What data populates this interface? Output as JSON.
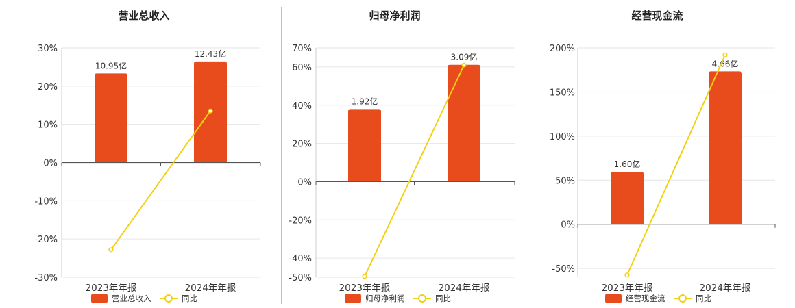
{
  "chart_data": [
    {
      "type": "bar",
      "title": "营业总收入",
      "categories": [
        "2023年年报",
        "2024年年报"
      ],
      "series": [
        {
          "name": "营业总收入",
          "kind": "bar",
          "axis": "left",
          "values": [
            10.95,
            12.43
          ],
          "labels": [
            "10.95亿",
            "12.43亿"
          ],
          "color": "#e84c1c"
        },
        {
          "name": "同比",
          "kind": "line",
          "axis": "left",
          "values": [
            -22.8,
            13.5
          ],
          "color": "#f2d013"
        }
      ],
      "ylim": [
        -30,
        30
      ],
      "yticks": [
        "30%",
        "20%",
        "10%",
        "0%",
        "-10%",
        "-20%",
        "-30%"
      ],
      "ytick_values": [
        30,
        20,
        10,
        0,
        -10,
        -20,
        -30
      ],
      "bar_scale": {
        "zero_percent": 0,
        "max_percent": 23.3,
        "max_value": 10.95
      },
      "grid": true,
      "legend": "bottom"
    },
    {
      "type": "bar",
      "title": "归母净利润",
      "categories": [
        "2023年年报",
        "2024年年报"
      ],
      "series": [
        {
          "name": "归母净利润",
          "kind": "bar",
          "axis": "left",
          "values": [
            1.92,
            3.09
          ],
          "labels": [
            "1.92亿",
            "3.09亿"
          ],
          "color": "#e84c1c"
        },
        {
          "name": "同比",
          "kind": "line",
          "axis": "left",
          "values": [
            -49.6,
            61.0
          ],
          "color": "#f2d013"
        }
      ],
      "ylim": [
        -50,
        70
      ],
      "yticks": [
        "70%",
        "60%",
        "40%",
        "20%",
        "0%",
        "-20%",
        "-40%",
        "-50%"
      ],
      "ytick_values": [
        70,
        60,
        40,
        20,
        0,
        -20,
        -40,
        -50
      ],
      "bar_scale": {
        "zero_percent": 0,
        "max_percent": 38.0,
        "max_value": 1.92
      },
      "grid": true,
      "legend": "bottom"
    },
    {
      "type": "bar",
      "title": "经营现金流",
      "categories": [
        "2023年年报",
        "2024年年报"
      ],
      "series": [
        {
          "name": "经营现金流",
          "kind": "bar",
          "axis": "left",
          "values": [
            1.6,
            4.66
          ],
          "labels": [
            "1.60亿",
            "4.66亿"
          ],
          "color": "#e84c1c"
        },
        {
          "name": "同比",
          "kind": "line",
          "axis": "left",
          "values": [
            -57.5,
            192.0
          ],
          "color": "#f2d013"
        }
      ],
      "ylim": [
        -60,
        200
      ],
      "yticks": [
        "200%",
        "150%",
        "100%",
        "50%",
        "0%",
        "-50%"
      ],
      "ytick_values": [
        200,
        150,
        100,
        50,
        0,
        -50
      ],
      "bar_scale": {
        "zero_percent": 0,
        "max_percent": 59.5,
        "max_value": 1.6
      },
      "grid": true,
      "legend": "bottom"
    }
  ]
}
